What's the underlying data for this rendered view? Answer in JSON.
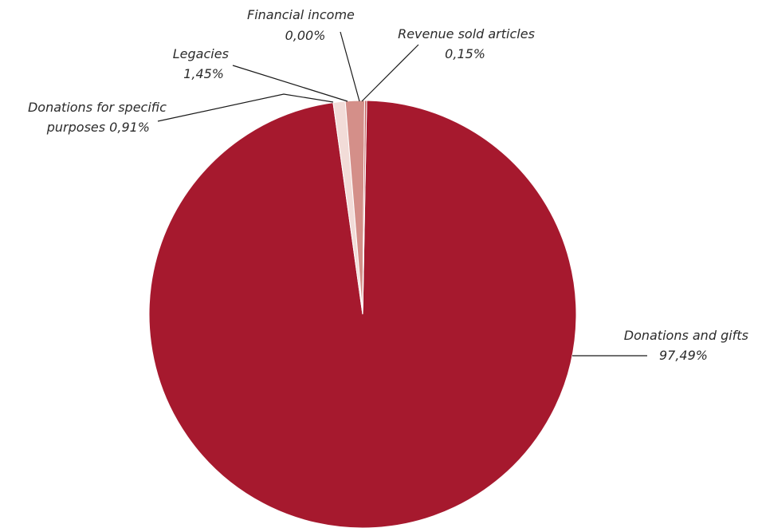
{
  "chart_data": {
    "type": "pie",
    "slices": [
      {
        "label": "Donations and gifts",
        "value_text": "97,49%",
        "value": 97.49,
        "color": "#a6192e"
      },
      {
        "label": "Donations for specific purposes",
        "value_text": "0,91%",
        "value": 0.91,
        "color": "#f2dcd8"
      },
      {
        "label": "Legacies",
        "value_text": "1,45%",
        "value": 1.45,
        "color": "#d48f89"
      },
      {
        "label": "Financial income",
        "value_text": "0,00%",
        "value": 0.0,
        "color": "#e6b8b3"
      },
      {
        "label": "Revenue sold articles",
        "value_text": "0,15%",
        "value": 0.15,
        "color": "#c45a5a"
      }
    ],
    "labels": {
      "donations_gifts": {
        "line1": "Donations and gifts",
        "line2": "97,49%"
      },
      "specific": {
        "line1": "Donations for specific",
        "line2": "purposes 0,91%"
      },
      "legacies": {
        "line1": "Legacies",
        "line2": "1,45%"
      },
      "financial": {
        "line1": "Financial income",
        "line2": "0,00%"
      },
      "revenue": {
        "line1": "Revenue sold articles",
        "line2": "0,15%"
      }
    }
  }
}
